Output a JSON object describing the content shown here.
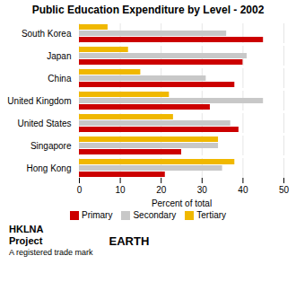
{
  "chart_data": {
    "type": "bar",
    "orientation": "horizontal",
    "title": "Public Education Expenditure by Level - 2002",
    "categories": [
      "South Korea",
      "Japan",
      "China",
      "United Kingdom",
      "United States",
      "Singapore",
      "Hong Kong"
    ],
    "series": [
      {
        "name": "Primary",
        "color": "#cc0000",
        "values": [
          45,
          40,
          38,
          32,
          39,
          25,
          21
        ]
      },
      {
        "name": "Secondary",
        "color": "#c8c8c8",
        "values": [
          36,
          41,
          31,
          45,
          37,
          34,
          35
        ]
      },
      {
        "name": "Tertiary",
        "color": "#f0b800",
        "values": [
          7,
          12,
          15,
          22,
          23,
          34,
          38
        ]
      }
    ],
    "x_label": "Percent of total",
    "xlim": [
      0,
      50
    ],
    "xticks": [
      0,
      10,
      20,
      30,
      40,
      50
    ],
    "grid": true,
    "legend": "bottom",
    "annotations": [
      "HKLNA",
      "Project",
      "EARTH",
      "A registered trade mark"
    ]
  }
}
